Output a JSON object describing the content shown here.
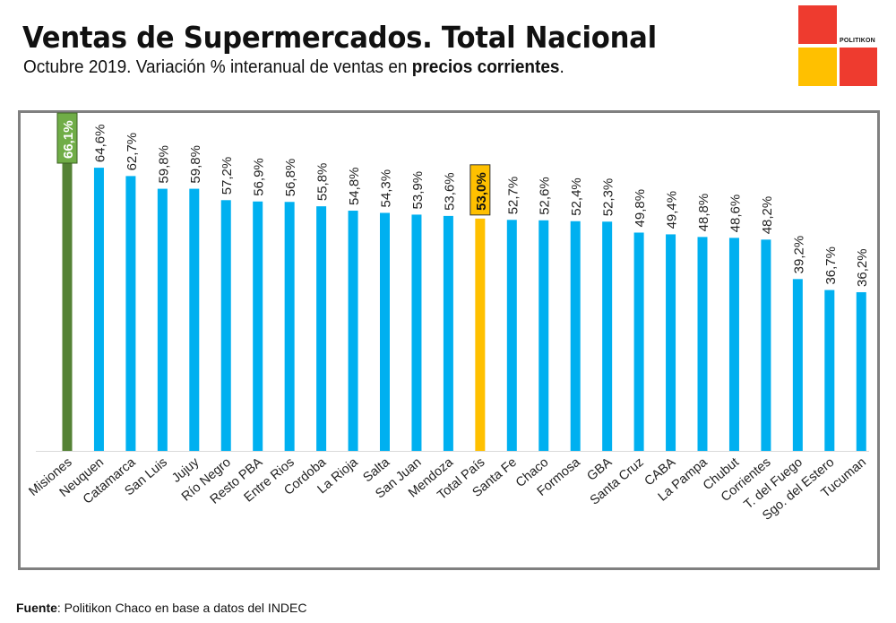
{
  "header": {
    "title": "Ventas de Supermercados. Total Nacional",
    "subtitle_prefix": "Octubre 2019. Variación % interanual de ventas en ",
    "subtitle_bold": "precios corrientes",
    "subtitle_suffix": "."
  },
  "logo": {
    "text": "POLITIKON",
    "colors": {
      "red": "#EE3B2F",
      "yellow": "#FFC000"
    }
  },
  "footer": {
    "source_label": "Fuente",
    "source_text": ": Politikon Chaco en base a datos del INDEC"
  },
  "colors": {
    "default_bar": "#00B0F0",
    "highlight_top": "#548235",
    "highlight_top_label_bg": "#70AD47",
    "highlight_total": "#FFC000",
    "frame": "#808080",
    "baseline": "#D9D9D9"
  },
  "chart_data": {
    "type": "bar",
    "title": "Ventas de Supermercados. Total Nacional",
    "subtitle": "Octubre 2019. Variación % interanual de ventas en precios corrientes.",
    "xlabel": "",
    "ylabel": "Variación % interanual",
    "ylim": [
      0,
      70
    ],
    "grid": false,
    "legend": "none",
    "categories": [
      "Misiones",
      "Neuquen",
      "Catamarca",
      "San Luis",
      "Jujuy",
      "Río Negro",
      "Resto PBA",
      "Entre Rios",
      "Cordoba",
      "La Rioja",
      "Salta",
      "San Juan",
      "Mendoza",
      "Total País",
      "Santa Fe",
      "Chaco",
      "Formosa",
      "GBA",
      "Santa Cruz",
      "CABA",
      "La Pampa",
      "Chubut",
      "Corrientes",
      "T. del Fuego",
      "Sgo. del Estero",
      "Tucuman"
    ],
    "values": [
      66.1,
      64.6,
      62.7,
      59.8,
      59.8,
      57.2,
      56.9,
      56.8,
      55.8,
      54.8,
      54.3,
      53.9,
      53.6,
      53.0,
      52.7,
      52.6,
      52.4,
      52.3,
      49.8,
      49.4,
      48.8,
      48.6,
      48.2,
      39.2,
      36.7,
      36.2
    ],
    "data_labels": [
      "66,1%",
      "64,6%",
      "62,7%",
      "59,8%",
      "59,8%",
      "57,2%",
      "56,9%",
      "56,8%",
      "55,8%",
      "54,8%",
      "54,3%",
      "53,9%",
      "53,6%",
      "53,0%",
      "52,7%",
      "52,6%",
      "52,4%",
      "52,3%",
      "49,8%",
      "49,4%",
      "48,8%",
      "48,6%",
      "48,2%",
      "39,2%",
      "36,7%",
      "36,2%"
    ],
    "highlights": {
      "Misiones": "top",
      "Total País": "total"
    }
  }
}
